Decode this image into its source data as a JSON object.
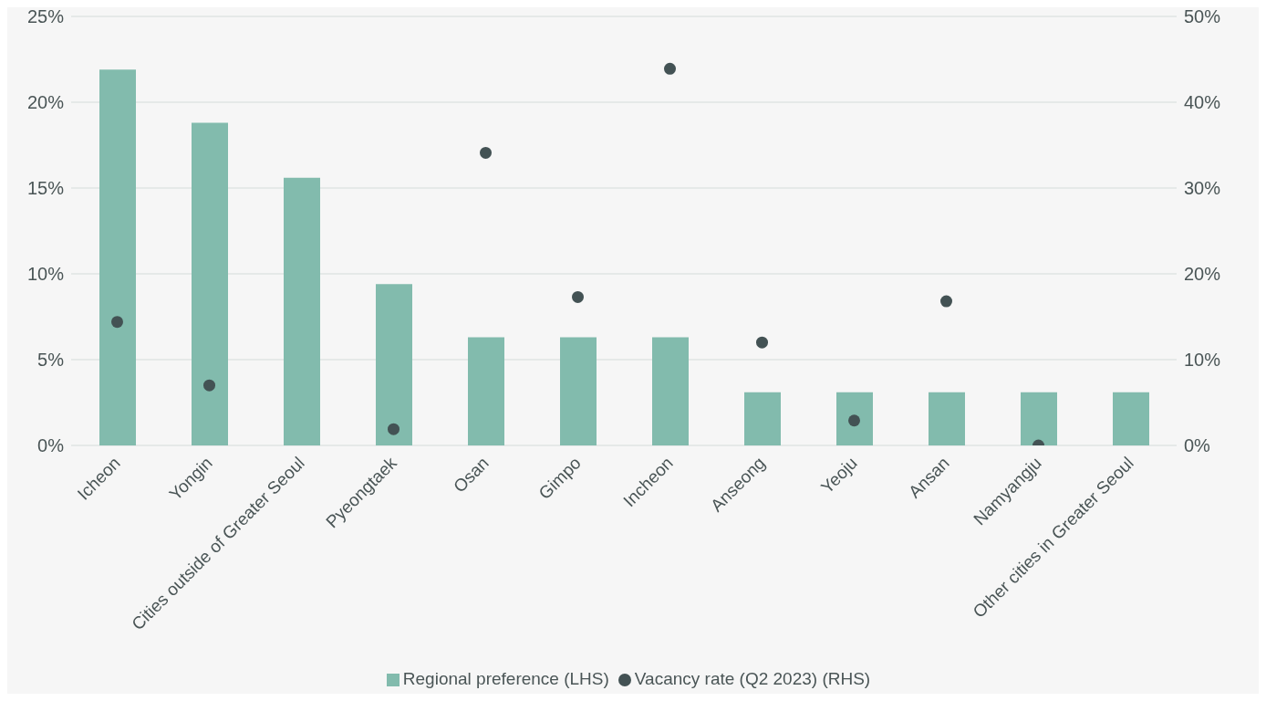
{
  "chart_data": {
    "type": "bar",
    "categories": [
      "Icheon",
      "Yongin",
      "Cities outside of Greater Seoul",
      "Pyeongtaek",
      "Osan",
      "Gimpo",
      "Incheon",
      "Anseong",
      "Yeoju",
      "Ansan",
      "Namyangju",
      "Other cities in Greater Seoul"
    ],
    "series": [
      {
        "name": "Regional preference (LHS)",
        "color": "#82bbad",
        "values": [
          21.9,
          18.8,
          15.6,
          9.4,
          6.3,
          6.3,
          6.3,
          3.1,
          3.1,
          3.1,
          3.1,
          3.1
        ]
      },
      {
        "name": "Vacancy rate (Q2 2023) (RHS)",
        "type": "scatter",
        "axis": "y2",
        "color": "#435254",
        "marker": "circle",
        "values": [
          14.4,
          7.0,
          null,
          1.9,
          34.1,
          17.3,
          43.9,
          12.0,
          2.9,
          16.8,
          0,
          null
        ]
      }
    ],
    "ylim": [
      0,
      25
    ],
    "yticks": [
      {
        "value": 0,
        "label": "0%"
      },
      {
        "value": 5,
        "label": "5%"
      },
      {
        "value": 10,
        "label": "10%"
      },
      {
        "value": 15,
        "label": "15%"
      },
      {
        "value": 20,
        "label": "20%"
      },
      {
        "value": 25,
        "label": "25%"
      }
    ],
    "y2lim": [
      0,
      50
    ],
    "y2ticks": [
      {
        "value": 0,
        "label": "0%"
      },
      {
        "value": 10,
        "label": "10%"
      },
      {
        "value": 20,
        "label": "20%"
      },
      {
        "value": 30,
        "label": "30%"
      },
      {
        "value": 40,
        "label": "40%"
      },
      {
        "value": 50,
        "label": "50%"
      }
    ],
    "grid": "y",
    "legend": "bottom"
  }
}
